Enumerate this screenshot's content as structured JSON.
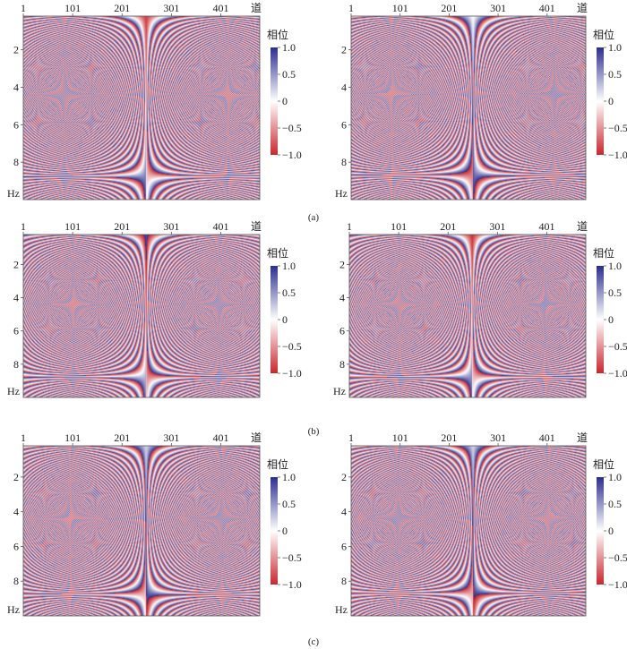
{
  "figure": {
    "captions": [
      "(a)",
      "(b)",
      "(c)"
    ]
  },
  "colors": {
    "red": "#c8262c",
    "white": "#ffffff",
    "blue": "#2b2e8f"
  },
  "chart_data": [
    {
      "panel": "a-left",
      "type": "heatmap",
      "x_ticks": [
        "1",
        "101",
        "201",
        "301",
        "401"
      ],
      "x_axis_label": "道",
      "y_ticks": [
        "2",
        "4",
        "6",
        "8"
      ],
      "y_axis_label": "Hz",
      "colorbar": {
        "title": "相位",
        "ticks": [
          "1.0",
          "0.5",
          "0",
          "−0.5",
          "−1.0"
        ],
        "range": [
          -1.0,
          1.0
        ]
      },
      "traces": [
        1,
        480
      ],
      "freq_range": [
        0.2,
        10.0
      ],
      "center_trace": 250,
      "apex_phase": -0.9,
      "phase_rate": 1.0
    },
    {
      "panel": "a-right",
      "type": "heatmap",
      "x_ticks": [
        "1",
        "101",
        "201",
        "301",
        "401"
      ],
      "x_axis_label": "道",
      "y_ticks": [
        "2",
        "4",
        "6",
        "8"
      ],
      "y_axis_label": "Hz",
      "colorbar": {
        "title": "相位",
        "ticks": [
          "1.0",
          "0.5",
          "0",
          "−0.5",
          "−1.0"
        ],
        "range": [
          -1.0,
          1.0
        ]
      },
      "traces": [
        1,
        480
      ],
      "freq_range": [
        0.2,
        10.0
      ],
      "center_trace": 250,
      "apex_phase": 0.0,
      "phase_rate": 1.0
    },
    {
      "panel": "b-left",
      "type": "heatmap",
      "x_ticks": [
        "1",
        "101",
        "201",
        "301",
        "401"
      ],
      "x_axis_label": "道",
      "y_ticks": [
        "2",
        "4",
        "6",
        "8"
      ],
      "y_axis_label": "Hz",
      "colorbar": {
        "title": "相位",
        "ticks": [
          "1.0",
          "0.5",
          "0",
          "−0.5",
          "−1.0"
        ],
        "range": [
          -1.0,
          1.0
        ]
      },
      "traces": [
        1,
        480
      ],
      "freq_range": [
        0.2,
        10.0
      ],
      "center_trace": 250,
      "apex_phase": 0.85,
      "phase_rate": 1.0
    },
    {
      "panel": "b-right",
      "type": "heatmap",
      "x_ticks": [
        "1",
        "101",
        "201",
        "301",
        "401"
      ],
      "x_axis_label": "道",
      "y_ticks": [
        "2",
        "4",
        "6",
        "8"
      ],
      "y_axis_label": "Hz",
      "colorbar": {
        "title": "相位",
        "ticks": [
          "1.0",
          "0.5",
          "0",
          "−0.5",
          "−1.0"
        ],
        "range": [
          -1.0,
          1.0
        ]
      },
      "traces": [
        1,
        480
      ],
      "freq_range": [
        0.2,
        10.0
      ],
      "center_trace": 250,
      "apex_phase": -0.95,
      "phase_rate": 1.0
    },
    {
      "panel": "c-left",
      "type": "heatmap",
      "x_ticks": [
        "1",
        "101",
        "201",
        "301",
        "401"
      ],
      "x_axis_label": "道",
      "y_ticks": [
        "2",
        "4",
        "6",
        "8"
      ],
      "y_axis_label": "Hz",
      "colorbar": {
        "title": "相位",
        "ticks": [
          "1.0",
          "0.5",
          "0",
          "−0.5",
          "−1.0"
        ],
        "range": [
          -1.0,
          1.0
        ]
      },
      "traces": [
        1,
        480
      ],
      "freq_range": [
        0.2,
        10.0
      ],
      "center_trace": 250,
      "apex_phase": 0.2,
      "phase_rate": 1.0
    },
    {
      "panel": "c-right",
      "type": "heatmap",
      "x_ticks": [
        "1",
        "101",
        "201",
        "301",
        "401"
      ],
      "x_axis_label": "道",
      "y_ticks": [
        "2",
        "4",
        "6",
        "8"
      ],
      "y_axis_label": "Hz",
      "colorbar": {
        "title": "相位",
        "ticks": [
          "1.0",
          "0.5",
          "0",
          "−0.5",
          "−1.0"
        ],
        "range": [
          -1.0,
          1.0
        ]
      },
      "traces": [
        1,
        480
      ],
      "freq_range": [
        0.2,
        10.0
      ],
      "center_trace": 250,
      "apex_phase": 0.2,
      "phase_rate": 1.0
    }
  ]
}
